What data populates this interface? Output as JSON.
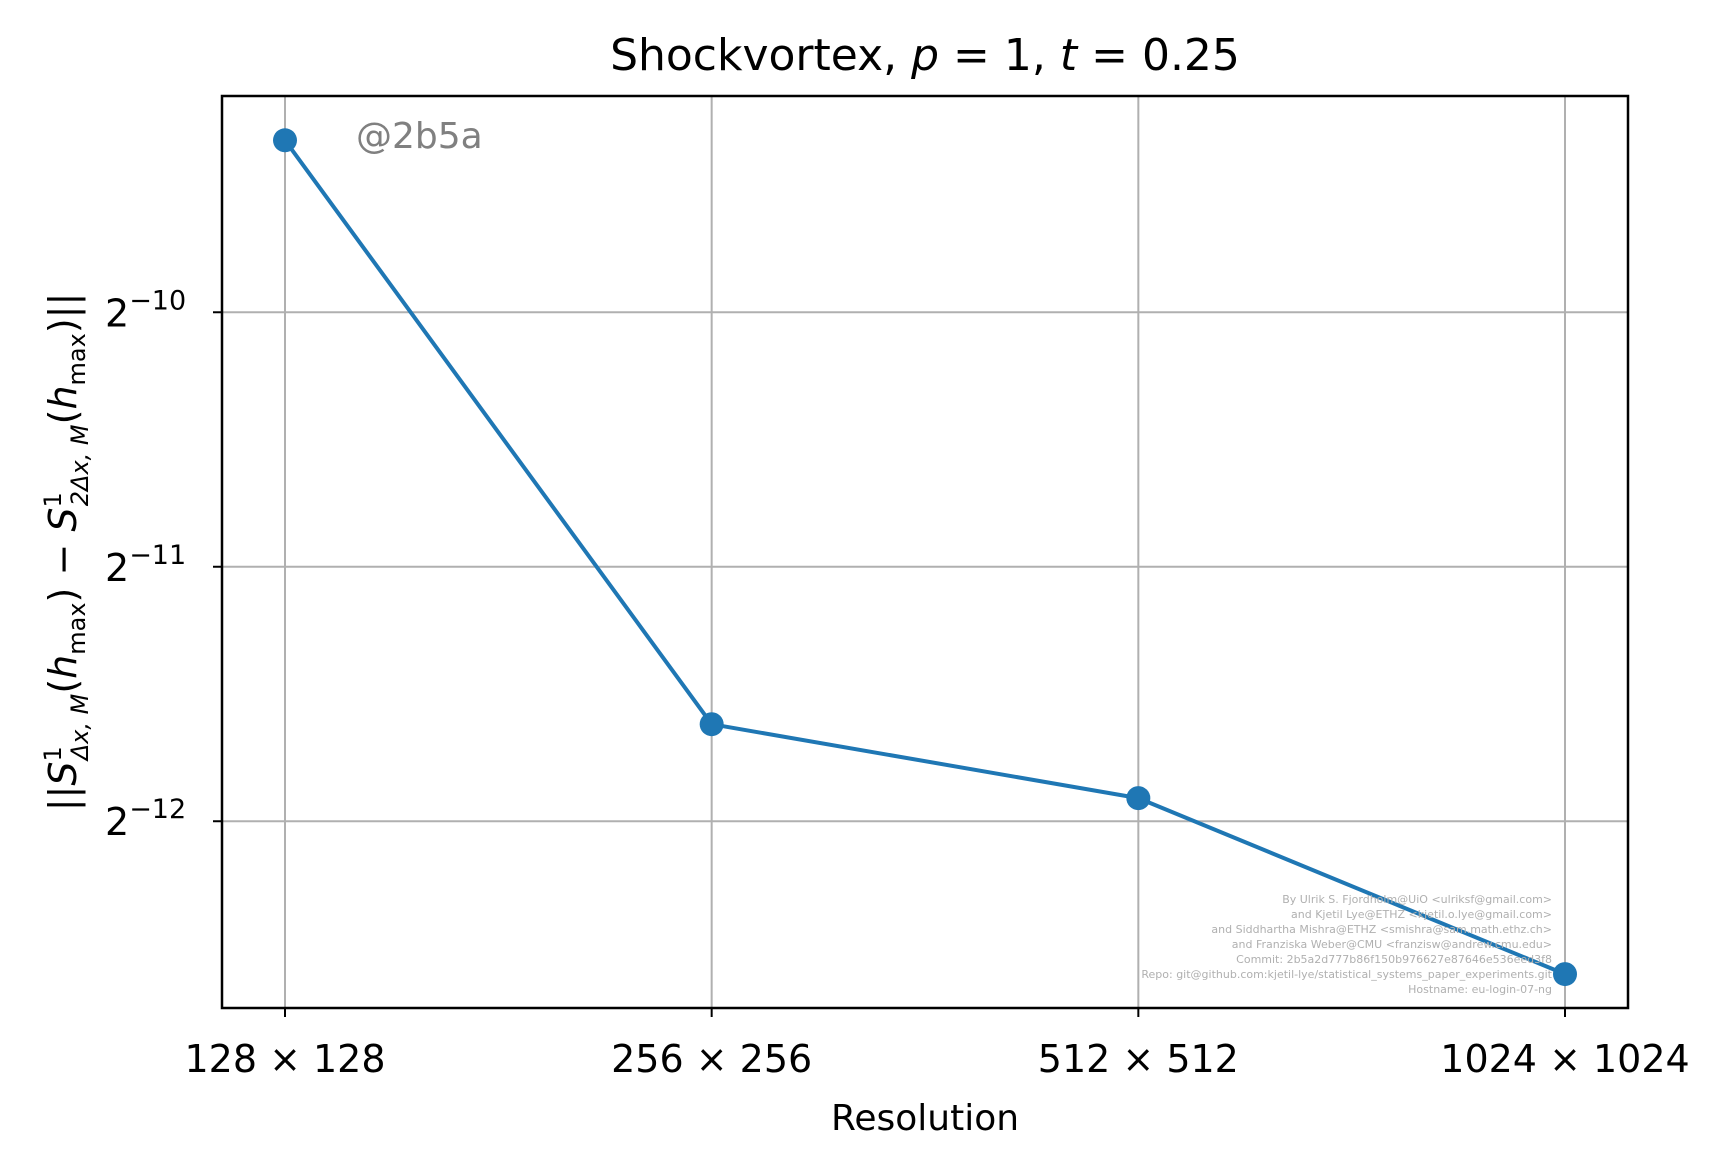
{
  "chart_data": {
    "type": "line",
    "title": {
      "prefix": "Shockvortex, ",
      "p_symbol": "p",
      "p_eq": " = 1, ",
      "t_symbol": "t",
      "t_eq": " = 0.25"
    },
    "xlabel": "Resolution",
    "ylabel": {
      "bars_open": "||",
      "s_symbol": "S",
      "sup": "1",
      "sub1": "Δx, M",
      "paren1_open": "(",
      "h_symbol": "h",
      "hsub": "max",
      "paren1_close": ")",
      "minus": " − ",
      "sub2": "2Δx, M",
      "paren2_open": "(",
      "paren2_close": ")",
      "bars_close": "||"
    },
    "categories": [
      "128 × 128",
      "256 × 256",
      "512 × 512",
      "1024 × 1024"
    ],
    "y_scale": "log2",
    "yticks": [
      {
        "base": "2",
        "exp": "−10",
        "value": 0.0009765625
      },
      {
        "base": "2",
        "exp": "−11",
        "value": 0.00048828125
      },
      {
        "base": "2",
        "exp": "−12",
        "value": 0.000244140625
      }
    ],
    "ylim": [
      0.0001468,
      0.00176
    ],
    "series": [
      {
        "values": [
          0.00156,
          0.000318,
          0.00026,
          0.000161
        ],
        "color": "#1f77b4",
        "marker": "circle"
      }
    ],
    "grid": true,
    "annotation": "@2b5a",
    "credits": [
      "By Ulrik S. Fjordholm@UiO <ulriksf@gmail.com>",
      "and Kjetil Lye@ETHZ <kjetil.o.lye@gmail.com>",
      "and Siddhartha Mishra@ETHZ <smishra@sam.math.ethz.ch>",
      "and Franziska Weber@CMU <franzisw@andrew.cmu.edu>",
      "Commit: 2b5a2d777b86f150b976627e87646e536eed3f8",
      "Repo: git@github.com:kjetil-lye/statistical_systems_paper_experiments.git",
      "Hostname: eu-login-07-ng"
    ]
  }
}
